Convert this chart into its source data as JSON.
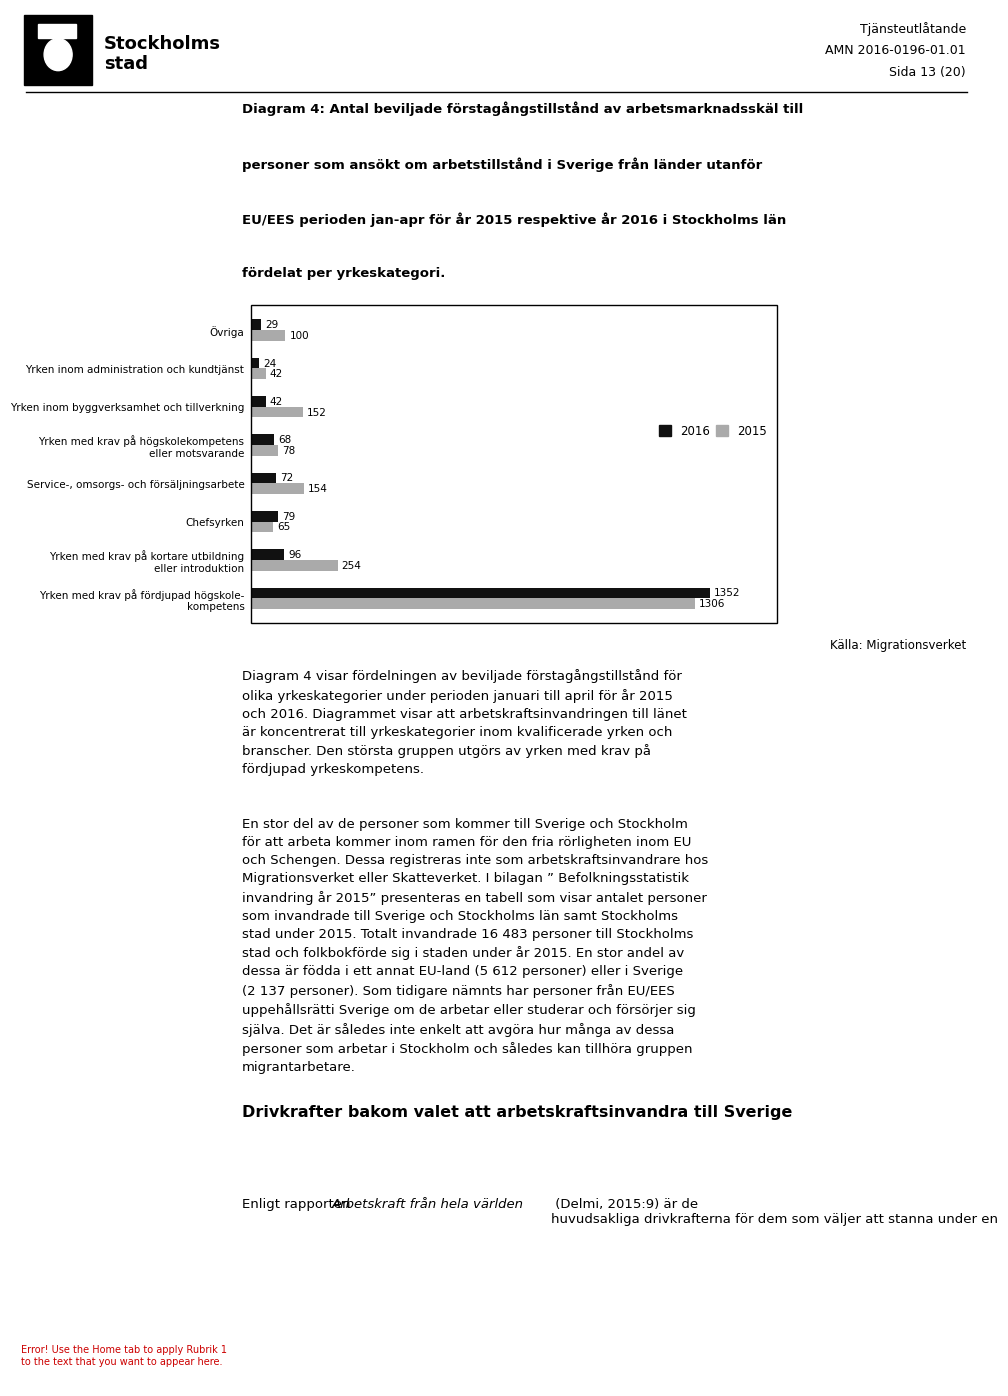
{
  "header_right_lines": [
    "Tjänsteutlåtande",
    "AMN 2016-0196-01.01",
    "Sida 13 (20)"
  ],
  "title_text": "Diagram 4: Antal beviljade förstagångstillstånd av arbetsmarknadsskäl till\npersoner som ansökt om arbetstillstånd i Sverige från länder utanför\nEU/EES perioden jan-apr för år 2015 respektive år 2016 i Stockholms län\nfördelat per yrkeskategori.",
  "categories": [
    "Övriga",
    "Yrken inom administration och kundtjänst",
    "Yrken inom byggverksamhet och tillverkning",
    "Yrken med krav på högskolekompetens\neller motsvarande",
    "Service-, omsorgs- och försäljningsarbete",
    "Chefsyrken",
    "Yrken med krav på kortare utbildning\neller introduktion",
    "Yrken med krav på fördjupad högskole-\nkompetens"
  ],
  "values_2016": [
    29,
    24,
    42,
    68,
    72,
    79,
    96,
    1352
  ],
  "values_2015": [
    100,
    42,
    152,
    78,
    154,
    65,
    254,
    1306
  ],
  "color_2016": "#111111",
  "color_2015": "#aaaaaa",
  "source_text": "Källa: Migrationsverket",
  "desc_para1": "Diagram 4 visar fördelningen av beviljade förstagångstillstånd för\nolika yrkeskategorier under perioden januari till april för år 2015\noch 2016. Diagrammet visar att arbetskraftsinvandringen till länet\när koncentrerat till yrkeskategorier inom kvalificerade yrken och\nbranscher. Den största gruppen utgörs av yrken med krav på\nfördjupad yrkeskompetens.",
  "desc_para2": "En stor del av de personer som kommer till Sverige och Stockholm\nför att arbeta kommer inom ramen för den fria rörligheten inom EU\noch Schengen. Dessa registreras inte som arbetskraftsinvandrare hos\nMigrationsverket eller Skatteverket. I bilagan ” Befolkningsstatistik\ninvandring år 2015” presenteras en tabell som visar antalet personer\nsom invandrade till Sverige och Stockholms län samt Stockholms\nstad under 2015. Totalt invandrade 16 483 personer till Stockholms\nstad och folkbokförde sig i staden under år 2015. En stor andel av\ndessa är födda i ett annat EU-land (5 612 personer) eller i Sverige\n(2 137 personer). Som tidigare nämnts har personer från EU/EES\nuppehållsrätti Sverige om de arbetar eller studerar och försörjer sig\nsjälva. Det är således inte enkelt att avgöra hur många av dessa\npersoner som arbetar i Stockholm och således kan tillhöra gruppen\nmigrantarbetare.",
  "section_title": "Drivkrafter bakom valet att arbetskraftsinvandra till Sverige",
  "section_italic": "Arbetskraft från hela världen",
  "section_text_before": "Enligt rapporten ",
  "section_text_after": " (Delmi, 2015:9) är de\nhuvudsakliga drivkrafterna för dem som väljer att stanna under en",
  "bottom_left_text": "Error! Use the Home tab to apply Rubrik 1\nto the text that you want to appear here.",
  "bg_color": "#ffffff",
  "text_color": "#000000"
}
